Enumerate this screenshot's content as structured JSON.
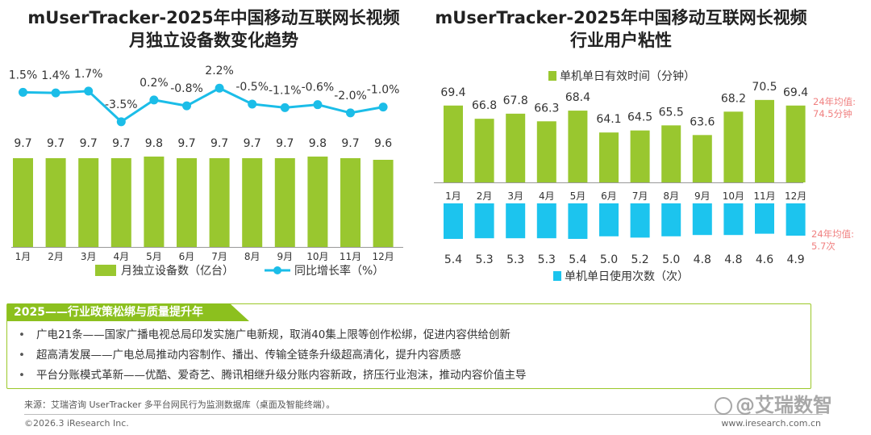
{
  "left_title": {
    "line1": "mUserTracker-2025年中国移动互联网长视频",
    "line2": "月独立设备数变化趋势"
  },
  "right_title": {
    "line1": "mUserTracker-2025年中国移动互联网长视频",
    "line2": "行业用户粘性"
  },
  "chart_data": [
    {
      "type": "bar+line",
      "categories": [
        "1月",
        "2月",
        "3月",
        "4月",
        "5月",
        "6月",
        "7月",
        "8月",
        "9月",
        "10月",
        "11月",
        "12月"
      ],
      "series": [
        {
          "name": "月独立设备数（亿台）",
          "type": "bar",
          "color": "#99c72f",
          "values": [
            9.7,
            9.7,
            9.7,
            9.7,
            9.8,
            9.7,
            9.7,
            9.7,
            9.7,
            9.8,
            9.7,
            9.6
          ],
          "labels": [
            "9.7",
            "9.7",
            "9.7",
            "9.7",
            "9.8",
            "9.7",
            "9.7",
            "9.7",
            "9.7",
            "9.8",
            "9.7",
            "9.6"
          ]
        },
        {
          "name": "同比增长率（%）",
          "type": "line",
          "color": "#1bbde8",
          "values": [
            1.5,
            1.4,
            1.7,
            -3.5,
            0.2,
            -0.8,
            2.2,
            -0.5,
            -1.1,
            -0.6,
            -2.0,
            -1.0
          ],
          "labels": [
            "1.5%",
            "1.4%",
            "1.7%",
            "-3.5%",
            "0.2%",
            "-0.8%",
            "2.2%",
            "-0.5%",
            "-1.1%",
            "-0.6%",
            "-2.0%",
            "-1.0%"
          ]
        }
      ],
      "legend": "bottom"
    },
    {
      "type": "bar",
      "categories": [
        "1月",
        "2月",
        "3月",
        "4月",
        "5月",
        "6月",
        "7月",
        "8月",
        "9月",
        "10月",
        "11月",
        "12月"
      ],
      "series": [
        {
          "name": "单机单日有效时间（分钟）",
          "color": "#99c72f",
          "values": [
            69.4,
            66.8,
            67.8,
            66.3,
            68.4,
            64.1,
            64.5,
            65.5,
            63.6,
            68.2,
            70.5,
            69.4
          ],
          "labels": [
            "69.4",
            "66.8",
            "67.8",
            "66.3",
            "68.4",
            "64.1",
            "64.5",
            "65.5",
            "63.6",
            "68.2",
            "70.5",
            "69.4"
          ]
        },
        {
          "name": "单机单日使用次数（次）",
          "color": "#1cc4ee",
          "values": [
            5.4,
            5.3,
            5.3,
            5.3,
            5.4,
            5.0,
            5.2,
            5.0,
            4.8,
            4.8,
            4.6,
            4.9
          ],
          "labels": [
            "5.4",
            "5.3",
            "5.3",
            "5.3",
            "5.4",
            "5.0",
            "5.2",
            "5.0",
            "4.8",
            "4.8",
            "4.6",
            "4.9"
          ]
        }
      ],
      "annotations": [
        {
          "line1": "24年均值:",
          "line2": "74.5分钟"
        },
        {
          "line1": "24年均值:",
          "line2": "5.7次"
        }
      ],
      "legend": "top / bottom"
    }
  ],
  "colors": {
    "green": "#99c72f",
    "blue": "#1cc4ee",
    "annot": "#f08080",
    "policy_green": "#8cc01e"
  },
  "policy": {
    "heading": "2025——行业政策松绑与质量提升年",
    "items": [
      "广电21条——国家广播电视总局印发实施广电新规，取消40集上限等创作松绑，促进内容供给创新",
      "超高清发展——广电总局推动内容制作、播出、传输全链条升级超高清化，提升内容质感",
      "平台分账模式革新——优酷、爱奇艺、腾讯相继升级分账内容新政，挤压行业泡沫，推动内容价值主导"
    ],
    "bullet": "•"
  },
  "footer": {
    "source": "来源：艾瑞咨询 UserTracker 多平台网民行为监测数据库（桌面及智能终端）。",
    "copyright": "©2026.3 iResearch Inc.",
    "website": "www.iresearch.com.cn",
    "watermark": "@艾瑞数智"
  }
}
